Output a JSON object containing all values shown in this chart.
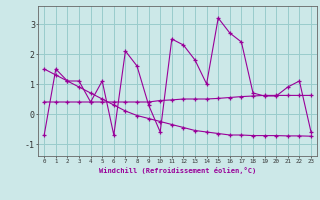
{
  "xlabel": "Windchill (Refroidissement éolien,°C)",
  "x": [
    0,
    1,
    2,
    3,
    4,
    5,
    6,
    7,
    8,
    9,
    10,
    11,
    12,
    13,
    14,
    15,
    16,
    17,
    18,
    19,
    20,
    21,
    22,
    23
  ],
  "y_line1": [
    -0.7,
    1.5,
    1.1,
    1.1,
    0.4,
    1.1,
    -0.7,
    2.1,
    1.6,
    0.3,
    -0.6,
    2.5,
    2.3,
    1.8,
    1.0,
    3.2,
    2.7,
    2.4,
    0.7,
    0.6,
    0.6,
    0.9,
    1.1,
    -0.6
  ],
  "y_line2": [
    0.4,
    0.4,
    0.4,
    0.4,
    0.4,
    0.4,
    0.4,
    0.4,
    0.4,
    0.4,
    0.45,
    0.47,
    0.5,
    0.5,
    0.5,
    0.52,
    0.55,
    0.58,
    0.6,
    0.62,
    0.62,
    0.62,
    0.62,
    0.62
  ],
  "y_line3": [
    1.5,
    1.3,
    1.1,
    0.9,
    0.7,
    0.5,
    0.3,
    0.1,
    -0.05,
    -0.15,
    -0.25,
    -0.35,
    -0.45,
    -0.55,
    -0.6,
    -0.65,
    -0.7,
    -0.7,
    -0.72,
    -0.72,
    -0.72,
    -0.73,
    -0.73,
    -0.74
  ],
  "bg_color": "#cce8e8",
  "grid_color": "#99cccc",
  "line_color": "#990099",
  "ylim": [
    -1.4,
    3.6
  ],
  "yticks": [
    -1,
    0,
    1,
    2,
    3
  ],
  "figwidth": 3.2,
  "figheight": 2.0,
  "dpi": 100
}
